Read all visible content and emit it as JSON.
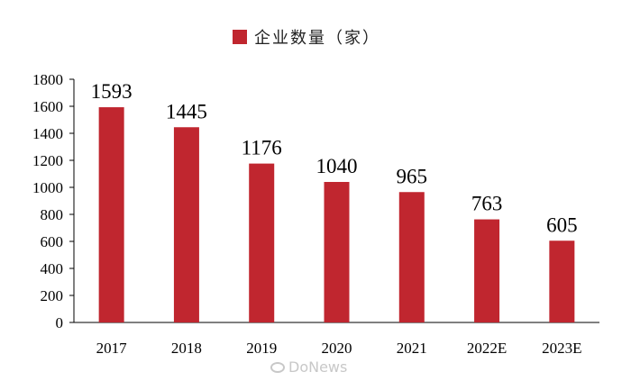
{
  "colors": {
    "bar": "#C0262F",
    "axis": "#000000",
    "text": "#000000"
  },
  "legend": {
    "label": "企业数量（家）",
    "icon": "square-swatch"
  },
  "watermark": {
    "text": "DoNews",
    "icon": "weibo-icon"
  },
  "chart_data": {
    "type": "bar",
    "categories": [
      "2017",
      "2018",
      "2019",
      "2020",
      "2021",
      "2022E",
      "2023E"
    ],
    "series": [
      {
        "name": "企业数量（家）",
        "values": [
          1593,
          1445,
          1176,
          1040,
          965,
          763,
          605
        ]
      }
    ],
    "ylim": [
      0,
      1800
    ],
    "yticks": [
      0,
      200,
      400,
      600,
      800,
      1000,
      1200,
      1400,
      1600,
      1800
    ],
    "title": "",
    "xlabel": "",
    "ylabel": "",
    "grid": false,
    "legend_position": "top-center"
  }
}
